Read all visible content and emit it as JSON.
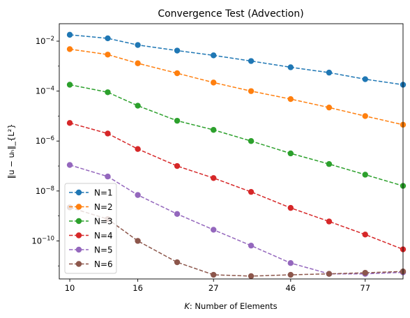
{
  "chart_data": {
    "type": "line",
    "title": "Convergence Test (Advection)",
    "xlabel_prefix": "K",
    "xlabel_rest": ": Number of Elements",
    "ylabel": "‖u − uₕ‖_{L²}",
    "x_scale": "log",
    "y_scale": "log",
    "xlim": [
      9.3,
      100
    ],
    "ylim": [
      3e-12,
      0.05
    ],
    "x": [
      10,
      13,
      16,
      21,
      27,
      35,
      46,
      60,
      77,
      100
    ],
    "x_ticks": [
      10,
      16,
      27,
      46,
      77
    ],
    "y_ticks": [
      1e-10,
      1e-08,
      1e-06,
      0.0001,
      0.01
    ],
    "y_tick_labels": [
      {
        "base": "10",
        "exp": "−10"
      },
      {
        "base": "10",
        "exp": "−8"
      },
      {
        "base": "10",
        "exp": "−6"
      },
      {
        "base": "10",
        "exp": "−4"
      },
      {
        "base": "10",
        "exp": "−2"
      }
    ],
    "legend_position": "lower-left",
    "series": [
      {
        "name": "N=1",
        "color": "#1f77b4",
        "values": [
          0.018,
          0.013,
          0.007,
          0.0042,
          0.0027,
          0.0016,
          0.0009,
          0.00055,
          0.0003,
          0.00018
        ]
      },
      {
        "name": "N=2",
        "color": "#ff7f0e",
        "values": [
          0.0048,
          0.0029,
          0.0013,
          0.00052,
          0.00022,
          0.0001,
          4.8e-05,
          2.2e-05,
          1e-05,
          4.5e-06
        ]
      },
      {
        "name": "N=3",
        "color": "#2ca02c",
        "values": [
          0.00018,
          9e-05,
          2.6e-05,
          6.5e-06,
          2.8e-06,
          1e-06,
          3.2e-07,
          1.2e-07,
          4.5e-08,
          1.6e-08
        ]
      },
      {
        "name": "N=4",
        "color": "#d62728",
        "values": [
          5.3e-06,
          2e-06,
          4.8e-07,
          1e-07,
          3.3e-08,
          9.2e-09,
          2.1e-09,
          6e-10,
          1.8e-10,
          4.6e-11
        ]
      },
      {
        "name": "N=5",
        "color": "#9467bd",
        "values": [
          1.1e-07,
          3.8e-08,
          6.9e-09,
          1.2e-09,
          2.8e-10,
          6.5e-11,
          1.3e-11,
          4.8e-12,
          4.8e-12,
          5.5e-12
        ]
      },
      {
        "name": "N=6",
        "color": "#8c564b",
        "values": [
          2.2e-09,
          7.5e-10,
          1e-10,
          1.4e-11,
          4.4e-12,
          3.9e-12,
          4.4e-12,
          4.8e-12,
          5.3e-12,
          6e-12
        ]
      }
    ]
  }
}
